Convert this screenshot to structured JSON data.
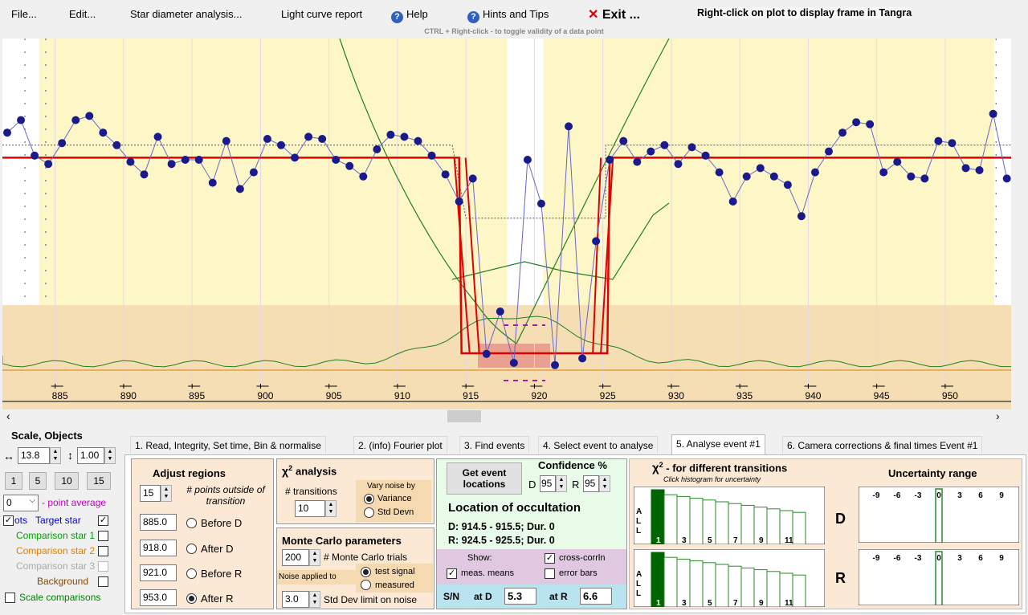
{
  "menu": {
    "file": "File...",
    "edit": "Edit...",
    "star_diameter": "Star diameter analysis...",
    "light_curve": "Light curve report",
    "help": "Help",
    "hints": "Hints and Tips",
    "exit": "Exit ...",
    "exit_symbol": "✕",
    "right_click_hint": "Right-click on plot to display frame in Tangra",
    "ctrl_hint": "CTRL + Right-click  -  to toggle validity of a data point"
  },
  "chart_data": {
    "type": "scatter",
    "title": "",
    "xlabel": "",
    "ylabel": "",
    "xlim": [
      881.5,
      955
    ],
    "x_ticks": [
      885,
      890,
      895,
      900,
      905,
      910,
      915,
      920,
      925,
      930,
      935,
      940,
      945,
      950
    ],
    "selection_regions": [
      [
        885.0,
        918.0
      ],
      [
        921.0,
        953.0
      ]
    ],
    "points": [
      [
        881.5,
        0.28
      ],
      [
        882.5,
        0.34
      ],
      [
        883.5,
        0.17
      ],
      [
        884.5,
        0.13
      ],
      [
        885.5,
        0.23
      ],
      [
        886.5,
        0.34
      ],
      [
        887.5,
        0.36
      ],
      [
        888.5,
        0.28
      ],
      [
        889.5,
        0.22
      ],
      [
        890.5,
        0.14
      ],
      [
        891.5,
        0.08
      ],
      [
        892.5,
        0.26
      ],
      [
        893.5,
        0.13
      ],
      [
        894.5,
        0.15
      ],
      [
        895.5,
        0.15
      ],
      [
        896.5,
        0.04
      ],
      [
        897.5,
        0.24
      ],
      [
        898.5,
        0.01
      ],
      [
        899.5,
        0.09
      ],
      [
        900.5,
        0.25
      ],
      [
        901.5,
        0.22
      ],
      [
        902.5,
        0.16
      ],
      [
        903.5,
        0.26
      ],
      [
        904.5,
        0.25
      ],
      [
        905.5,
        0.15
      ],
      [
        906.5,
        0.12
      ],
      [
        907.5,
        0.07
      ],
      [
        908.5,
        0.2
      ],
      [
        909.5,
        0.27
      ],
      [
        910.5,
        0.26
      ],
      [
        911.5,
        0.24
      ],
      [
        912.5,
        0.17
      ],
      [
        913.5,
        0.08
      ],
      [
        914.5,
        -0.05
      ],
      [
        915.5,
        0.06
      ],
      [
        916.5,
        -0.62
      ],
      [
        917.5,
        0.65
      ],
      [
        918.5,
        -0.7
      ],
      [
        919.5,
        0.15
      ],
      [
        920.5,
        -0.06
      ],
      [
        921.5,
        -0.72
      ],
      [
        922.5,
        0.31
      ],
      [
        923.5,
        -0.66
      ],
      [
        924.5,
        -0.24
      ],
      [
        925.5,
        0.15
      ],
      [
        926.5,
        0.24
      ],
      [
        927.5,
        0.14
      ],
      [
        928.5,
        0.19
      ],
      [
        929.5,
        0.22
      ],
      [
        930.5,
        0.13
      ],
      [
        931.5,
        0.21
      ],
      [
        932.5,
        0.17
      ],
      [
        933.5,
        0.09
      ],
      [
        934.5,
        -0.05
      ],
      [
        935.5,
        0.07
      ],
      [
        936.5,
        0.11
      ],
      [
        937.5,
        0.07
      ],
      [
        938.5,
        0.03
      ],
      [
        939.5,
        -0.12
      ],
      [
        940.5,
        0.09
      ],
      [
        941.5,
        0.19
      ],
      [
        942.5,
        0.28
      ],
      [
        943.5,
        0.33
      ],
      [
        944.5,
        0.32
      ],
      [
        945.5,
        0.09
      ],
      [
        946.5,
        0.14
      ],
      [
        947.5,
        0.07
      ],
      [
        948.5,
        0.06
      ],
      [
        949.5,
        0.24
      ],
      [
        950.5,
        0.23
      ],
      [
        951.5,
        0.11
      ],
      [
        952.5,
        0.1
      ],
      [
        953.5,
        0.37
      ],
      [
        954.5,
        0.06
      ]
    ],
    "model_levels": {
      "baseline": 0.16,
      "event": -0.55
    },
    "model_transitions": {
      "D": [
        914.5,
        915.5
      ],
      "R": [
        924.5,
        925.5
      ]
    }
  },
  "scale": {
    "title": "Scale, Objects",
    "h_value": "13.8",
    "v_value": "1.00",
    "buttons": [
      "1",
      "5",
      "10",
      "15"
    ],
    "point_average_value": "0",
    "point_average_label": "- point average",
    "targets": [
      {
        "label": "Target star",
        "color": "#0000dd",
        "checked": true,
        "prefix": "ots"
      },
      {
        "label": "Comparison star 1",
        "color": "#00a000",
        "checked": false
      },
      {
        "label": "Comparison star 2",
        "color": "#e08000",
        "checked": false
      },
      {
        "label": "Comparison star 3",
        "color": "#aaaaaa",
        "checked": false
      },
      {
        "label": "Background",
        "color": "#884400",
        "checked": false
      }
    ],
    "scale_comparisons": "Scale comparisons"
  },
  "tabs": [
    "1.  Read, Integrity, Set time, Bin & normalise",
    "2. (info)  Fourier plot",
    "3. Find events",
    "4. Select event to analyse",
    "5. Analyse event #1",
    "6. Camera corrections & final times Event #1"
  ],
  "adjust": {
    "title": "Adjust regions",
    "points_value": "15",
    "points_label": "# points outside of transition",
    "rows": [
      {
        "value": "885.0",
        "label": "Before D",
        "selected": false
      },
      {
        "value": "918.0",
        "label": "After D",
        "selected": false
      },
      {
        "value": "921.0",
        "label": "Before R",
        "selected": false
      },
      {
        "value": "953.0",
        "label": "After R",
        "selected": true
      }
    ]
  },
  "chi2": {
    "title_sym": "χ",
    "title_sup": "2",
    "title_text": "analysis",
    "transitions_label": "# transitions",
    "transitions_value": "10",
    "vary_label": "Vary noise by",
    "variance": "Variance",
    "std_devn": "Std Devn"
  },
  "monte": {
    "title": "Monte Carlo parameters",
    "trials_value": "200",
    "trials_label": "# Monte Carlo trials",
    "noise_label": "Noise applied to",
    "test_signal": "test signal",
    "measured": "measured",
    "std_value": "3.0",
    "std_label": "Std Dev limit on noise"
  },
  "location": {
    "get_button": "Get event locations",
    "confidence_title": "Confidence %",
    "d_label": "D",
    "d_value": "95",
    "r_label": "R",
    "r_value": "95",
    "title": "Location of occultation",
    "d_line": "D: 914.5 - 915.5; Dur. 0",
    "r_line": "R: 924.5 - 925.5; Dur. 0",
    "show_label": "Show:",
    "cross_corr": "cross-corrln",
    "meas_means": "meas. means",
    "error_bars": "error bars",
    "sn_label": "S/N",
    "at_d": "at D",
    "at_d_value": "5.3",
    "at_r": "at R",
    "at_r_value": "6.6"
  },
  "chi_hist": {
    "title_sym": "χ",
    "title_sup": "2",
    "title_text": "- for different transitions",
    "subtitle": "Click histogram for uncertainty",
    "side_letters": [
      "A",
      "L",
      "L"
    ],
    "labels": [
      "1",
      "3",
      "5",
      "7",
      "9",
      "11"
    ],
    "d_letter": "D",
    "r_letter": "R"
  },
  "uncertainty": {
    "title": "Uncertainty range",
    "labels": [
      "-9",
      "-6",
      "-3",
      "0",
      "3",
      "6",
      "9"
    ]
  },
  "colors": {
    "plot_yellow": "#fdf7c8",
    "plot_tan": "#f5deb3",
    "model": "#e00000",
    "points": "#1a1a8c",
    "green_curve": "#208020"
  }
}
